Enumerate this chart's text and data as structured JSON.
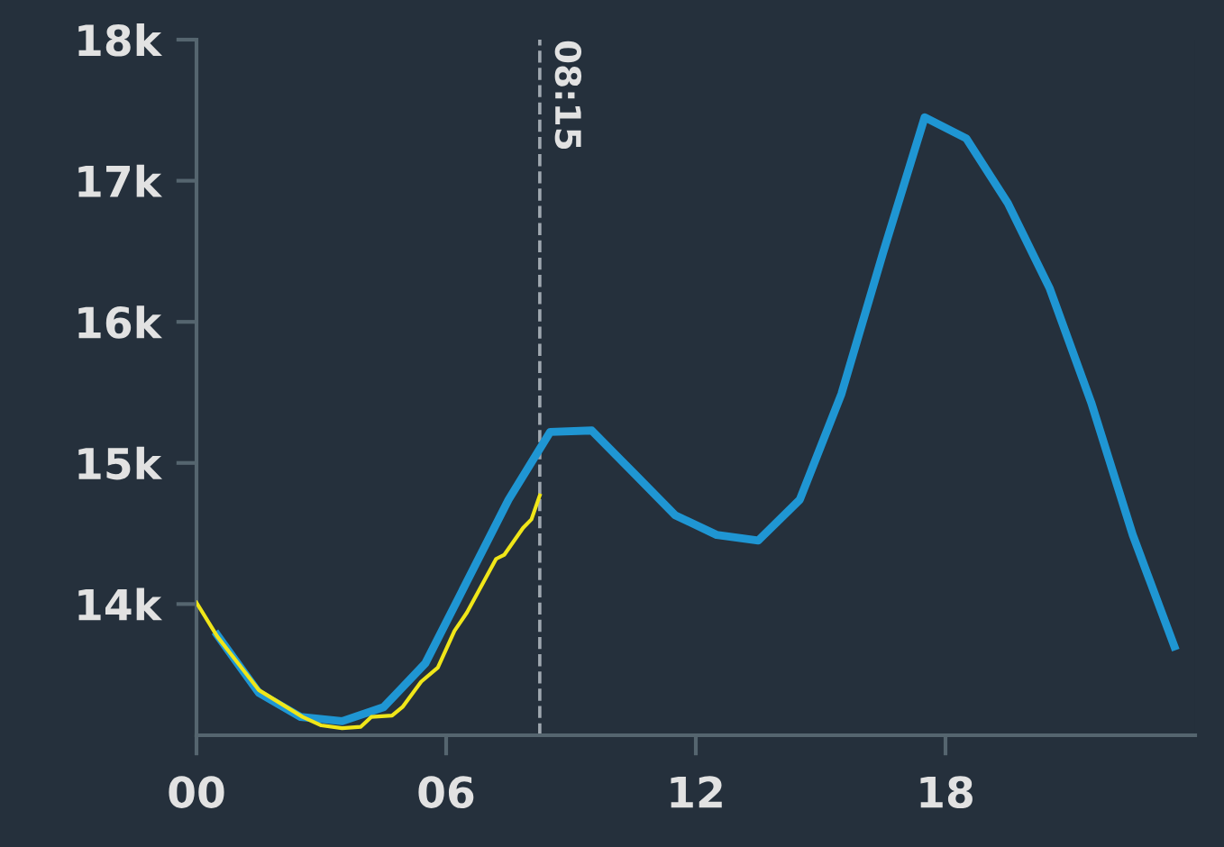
{
  "chart_data": {
    "type": "line",
    "xlim": [
      0,
      24
    ],
    "ylim": [
      13070,
      18000
    ],
    "xticks": [
      {
        "value": 0,
        "label": "00"
      },
      {
        "value": 6,
        "label": "06"
      },
      {
        "value": 12,
        "label": "12"
      },
      {
        "value": 18,
        "label": "18"
      }
    ],
    "yticks": [
      {
        "value": 14000,
        "label": "14k"
      },
      {
        "value": 15000,
        "label": "15k"
      },
      {
        "value": 16000,
        "label": "16k"
      },
      {
        "value": 17000,
        "label": "17k"
      },
      {
        "value": 18000,
        "label": "18k"
      }
    ],
    "grid": false,
    "marker": "none",
    "line_style": "solid",
    "series": [
      {
        "color": "#1f96d3",
        "x": [
          0.5,
          1.5,
          2.5,
          3.5,
          4.5,
          5.5,
          6.5,
          7.5,
          8.5,
          9.5,
          10.5,
          11.5,
          12.5,
          13.5,
          14.5,
          15.5,
          16.5,
          17.5,
          18.5,
          19.5,
          20.5,
          21.5,
          22.5,
          23.5
        ],
        "values": [
          13780,
          13370,
          13200,
          13170,
          13270,
          13580,
          14160,
          14740,
          15220,
          15230,
          14930,
          14630,
          14490,
          14450,
          14740,
          15490,
          16490,
          17450,
          17300,
          16840,
          16240,
          15430,
          14490,
          13700
        ]
      },
      {
        "color": "#f0e619",
        "x": [
          0,
          0.5,
          1.5,
          2.55,
          3,
          3.5,
          3.95,
          4.2,
          4.7,
          4.95,
          5.4,
          5.8,
          6.2,
          6.5,
          7.2,
          7.4,
          7.85,
          8.05,
          8.25
        ],
        "values": [
          14010,
          13770,
          13390,
          13200,
          13140,
          13120,
          13130,
          13200,
          13210,
          13270,
          13450,
          13550,
          13810,
          13940,
          14320,
          14350,
          14540,
          14600,
          14770
        ]
      }
    ],
    "ref_lines": [
      {
        "axis": "x",
        "value": 8.25,
        "label": "08:15",
        "color": "#a0a8b0",
        "line_style": "dashed"
      }
    ]
  }
}
